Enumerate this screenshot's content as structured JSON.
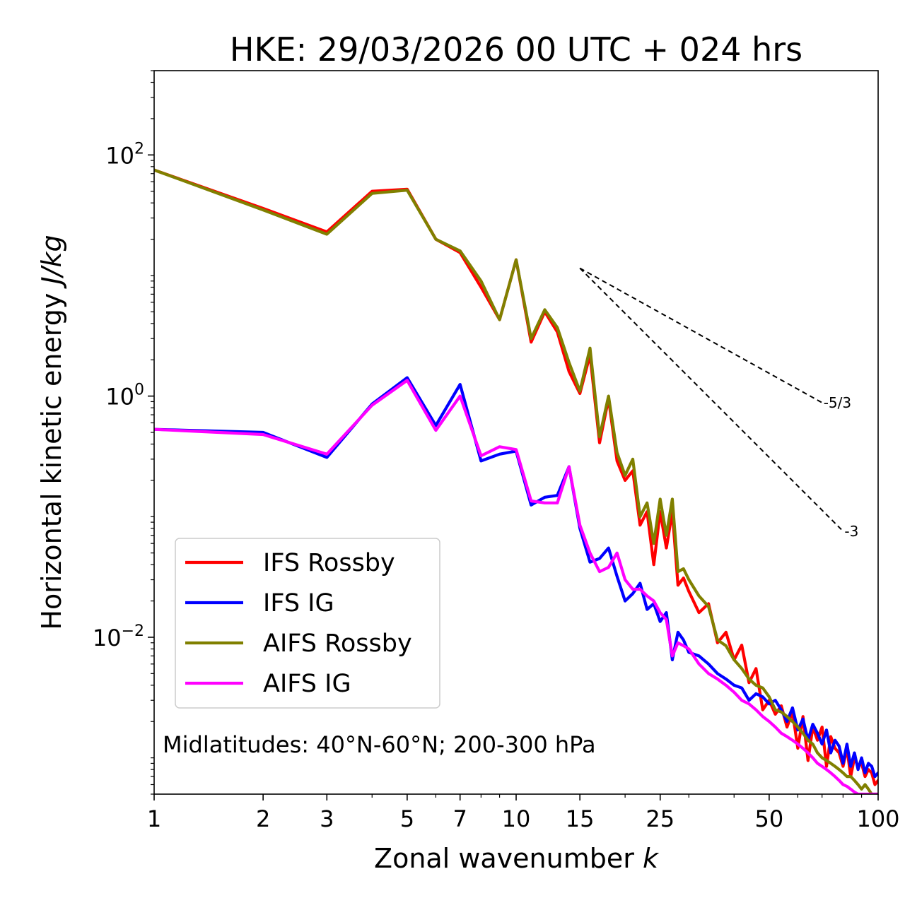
{
  "chart_data": {
    "type": "line",
    "title": "HKE: 29/03/2026 00 UTC + 024 hrs",
    "xlabel_text": "Zonal wavenumber ",
    "xlabel_var": "k",
    "ylabel_text": "Horizontal kinetic energy ",
    "ylabel_unit": "J/kg",
    "xscale": "log",
    "yscale": "log",
    "xlim": [
      1,
      100
    ],
    "ylim": [
      0.0005,
      500
    ],
    "x_ticks": [
      1,
      2,
      3,
      5,
      7,
      10,
      15,
      25,
      50,
      100
    ],
    "x_tick_labels": [
      "1",
      "2",
      "3",
      "5",
      "7",
      "10",
      "15",
      "25",
      "50",
      "100"
    ],
    "y_ticks": [
      {
        "value": 100,
        "base": "10",
        "exp": "2"
      },
      {
        "value": 1,
        "base": "10",
        "exp": "0"
      },
      {
        "value": 0.01,
        "base": "10",
        "exp": "−2"
      }
    ],
    "annotation": "Midlatitudes: 40°N-60°N; 200-300 hPa",
    "legend_position": "lower-left",
    "reference_slopes": [
      {
        "label": "-5/3",
        "slope": -1.6667,
        "x_start": 15,
        "x_end": 70,
        "y_start": 11.5
      },
      {
        "label": "-3",
        "slope": -3,
        "x_start": 15,
        "x_end": 80,
        "y_start": 11.5
      }
    ],
    "series": [
      {
        "name": "IFS Rossby",
        "color": "#ff0000",
        "x": [
          1,
          2,
          3,
          4,
          5,
          6,
          7,
          8,
          9,
          10,
          11,
          12,
          13,
          14,
          15,
          16,
          17,
          18,
          19,
          20,
          21,
          22,
          23,
          24,
          25,
          26,
          27,
          28,
          29,
          30,
          32,
          34,
          36,
          38,
          40,
          42,
          44,
          46,
          48,
          50,
          52,
          54,
          56,
          58,
          60,
          62,
          64,
          66,
          68,
          70,
          72,
          74,
          76,
          78,
          80,
          82,
          84,
          86,
          88,
          90,
          92,
          94,
          96,
          98,
          100
        ],
        "y": [
          75,
          36,
          23,
          50,
          52,
          20,
          15.5,
          8,
          4.3,
          13.5,
          2.8,
          5,
          3.4,
          1.6,
          1.05,
          2.2,
          0.41,
          0.95,
          0.29,
          0.2,
          0.24,
          0.085,
          0.11,
          0.04,
          0.11,
          0.055,
          0.11,
          0.027,
          0.031,
          0.024,
          0.016,
          0.019,
          0.009,
          0.011,
          0.0065,
          0.0086,
          0.0042,
          0.0055,
          0.0025,
          0.003,
          0.0023,
          0.0027,
          0.0018,
          0.0024,
          0.0012,
          0.0022,
          0.00095,
          0.0018,
          0.0014,
          0.0018,
          0.00085,
          0.0015,
          0.0012,
          0.0011,
          0.00085,
          0.0012,
          0.0007,
          0.001,
          0.00085,
          0.0009,
          0.0007,
          0.0008,
          0.00075,
          0.0006,
          0.00065
        ]
      },
      {
        "name": "IFS IG",
        "color": "#0000ff",
        "x": [
          1,
          2,
          3,
          4,
          5,
          6,
          7,
          8,
          9,
          10,
          11,
          12,
          13,
          14,
          15,
          16,
          17,
          18,
          19,
          20,
          21,
          22,
          23,
          24,
          25,
          26,
          27,
          28,
          29,
          30,
          32,
          34,
          36,
          38,
          40,
          42,
          44,
          46,
          48,
          50,
          52,
          54,
          56,
          58,
          60,
          62,
          64,
          66,
          68,
          70,
          72,
          74,
          76,
          78,
          80,
          82,
          84,
          86,
          88,
          90,
          92,
          94,
          96,
          98,
          100
        ],
        "y": [
          0.53,
          0.5,
          0.31,
          0.86,
          1.42,
          0.57,
          1.25,
          0.29,
          0.33,
          0.35,
          0.125,
          0.145,
          0.15,
          0.26,
          0.08,
          0.042,
          0.045,
          0.055,
          0.032,
          0.02,
          0.023,
          0.028,
          0.017,
          0.019,
          0.0135,
          0.016,
          0.0065,
          0.011,
          0.0095,
          0.0075,
          0.007,
          0.006,
          0.005,
          0.0045,
          0.004,
          0.0038,
          0.003,
          0.0034,
          0.0032,
          0.0028,
          0.003,
          0.0025,
          0.002,
          0.0026,
          0.0017,
          0.0021,
          0.0014,
          0.0019,
          0.0016,
          0.0013,
          0.0017,
          0.0011,
          0.0014,
          0.00125,
          0.0009,
          0.0013,
          0.00085,
          0.0011,
          0.0008,
          0.001,
          0.00075,
          0.0009,
          0.00085,
          0.0007,
          0.00075
        ]
      },
      {
        "name": "AIFS Rossby",
        "color": "#808000",
        "x": [
          1,
          2,
          3,
          4,
          5,
          6,
          7,
          8,
          9,
          10,
          11,
          12,
          13,
          14,
          15,
          16,
          17,
          18,
          19,
          20,
          21,
          22,
          23,
          24,
          25,
          26,
          27,
          28,
          29,
          30,
          32,
          34,
          36,
          38,
          40,
          42,
          44,
          46,
          48,
          50,
          52,
          54,
          56,
          58,
          60,
          62,
          64,
          66,
          68,
          70,
          72,
          74,
          76,
          78,
          80,
          82,
          84,
          86,
          88,
          90,
          92,
          94,
          96,
          98,
          100
        ],
        "y": [
          75,
          35,
          22,
          48,
          51,
          20,
          16,
          9,
          4.3,
          13.5,
          3.0,
          5.2,
          3.7,
          1.9,
          1.1,
          2.5,
          0.46,
          1.0,
          0.34,
          0.22,
          0.3,
          0.1,
          0.13,
          0.06,
          0.14,
          0.07,
          0.14,
          0.035,
          0.037,
          0.03,
          0.022,
          0.018,
          0.0095,
          0.0085,
          0.0065,
          0.0055,
          0.0045,
          0.004,
          0.0038,
          0.0032,
          0.0025,
          0.0024,
          0.0022,
          0.002,
          0.0018,
          0.0016,
          0.0014,
          0.0013,
          0.0011,
          0.001,
          0.00095,
          0.0009,
          0.00085,
          0.0008,
          0.00075,
          0.0007,
          0.0007,
          0.00065,
          0.0006,
          0.00055,
          0.0006,
          0.00055,
          0.0005,
          0.0005,
          0.0005
        ]
      },
      {
        "name": "AIFS IG",
        "color": "#ff00ff",
        "x": [
          1,
          2,
          3,
          4,
          5,
          6,
          7,
          8,
          9,
          10,
          11,
          12,
          13,
          14,
          15,
          16,
          17,
          18,
          19,
          20,
          21,
          22,
          23,
          24,
          25,
          26,
          27,
          28,
          29,
          30,
          32,
          34,
          36,
          38,
          40,
          42,
          44,
          46,
          48,
          50,
          52,
          54,
          56,
          58,
          60,
          62,
          64,
          66,
          68,
          70,
          72,
          74,
          76,
          78,
          80,
          82,
          84,
          86,
          88,
          90,
          92,
          94,
          96,
          98,
          100
        ],
        "y": [
          0.53,
          0.48,
          0.33,
          0.84,
          1.35,
          0.52,
          1.0,
          0.32,
          0.38,
          0.36,
          0.135,
          0.13,
          0.13,
          0.26,
          0.085,
          0.05,
          0.035,
          0.038,
          0.05,
          0.03,
          0.025,
          0.025,
          0.022,
          0.02,
          0.016,
          0.014,
          0.007,
          0.009,
          0.0085,
          0.008,
          0.006,
          0.005,
          0.0045,
          0.004,
          0.0035,
          0.003,
          0.0028,
          0.0025,
          0.0022,
          0.002,
          0.0018,
          0.0016,
          0.0015,
          0.0014,
          0.0013,
          0.0012,
          0.0011,
          0.001,
          0.0009,
          0.00085,
          0.0008,
          0.00075,
          0.0007,
          0.00065,
          0.0006,
          0.00058,
          0.00055,
          0.00052,
          0.0005,
          0.0005,
          0.0005,
          0.0005,
          0.0005,
          0.0005,
          0.0005
        ]
      }
    ]
  }
}
